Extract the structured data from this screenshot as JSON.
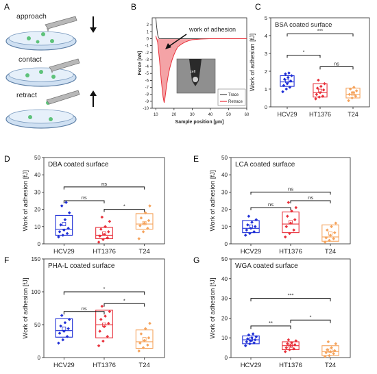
{
  "figure": {
    "colors": {
      "HCV29": "#1f2fd6",
      "HT1376": "#e8303a",
      "T24": "#f5a35c",
      "axis": "#222222",
      "retrace": "#e8303a",
      "retrace_fill": "#f4a3a6",
      "trace": "#444444"
    },
    "panel_letters": [
      "A",
      "B",
      "C",
      "D",
      "E",
      "F",
      "G"
    ],
    "schematic": {
      "steps": [
        "approach",
        "contact",
        "retract"
      ],
      "arrow_icons": [
        "arrow-down-icon",
        "arrow-up-icon"
      ]
    }
  },
  "chart_data": [
    {
      "panel": "B",
      "type": "line",
      "xlabel": "Sample position [µm]",
      "ylabel": "Force [nN]",
      "xlim": [
        8,
        60
      ],
      "ylim": [
        -10,
        3
      ],
      "xticks": [
        10,
        20,
        30,
        40,
        50,
        60
      ],
      "yticks": [
        2,
        1,
        0,
        -1,
        -2,
        -3,
        -4,
        -5,
        -6,
        -7,
        -8,
        -9,
        -10
      ],
      "annotation": "work of adhesion",
      "inset_label": "cell",
      "legend": {
        "position": "bottom-right",
        "entries": [
          "Trace",
          "Retrace"
        ]
      },
      "series": [
        {
          "name": "Trace",
          "x": [
            10.0,
            10.5,
            11.0,
            11.5,
            12.0,
            14.0,
            20.0,
            30.0,
            40.0,
            50.0,
            60.0
          ],
          "y": [
            3.0,
            1.6,
            0.6,
            0.15,
            0.02,
            0.0,
            0.0,
            0.0,
            0.0,
            0.0,
            0.0
          ]
        },
        {
          "name": "Retrace",
          "x": [
            10.0,
            11.0,
            12.0,
            13.0,
            14.0,
            14.6,
            15.0,
            16.0,
            17.0,
            18.0,
            19.0,
            20.0,
            21.0,
            22.0,
            24.0,
            26.0,
            28.0,
            30.0,
            35.0,
            40.0,
            60.0
          ],
          "y": [
            0.4,
            -0.5,
            -3.0,
            -6.0,
            -8.4,
            -9.2,
            -8.6,
            -6.6,
            -5.0,
            -3.9,
            -3.0,
            -2.3,
            -1.7,
            -1.2,
            -0.8,
            -0.5,
            -0.3,
            -0.15,
            -0.05,
            0.0,
            0.0
          ]
        }
      ]
    },
    {
      "panel": "C",
      "type": "box",
      "title": "BSA coated surface",
      "ylabel": "Work of adhesion [fJ]",
      "ylim": [
        0,
        5
      ],
      "yticks": [
        0,
        1,
        2,
        3,
        4,
        5
      ],
      "categories": [
        "HCV29",
        "HT1376",
        "T24"
      ],
      "boxes": [
        {
          "q1": 1.15,
          "median": 1.4,
          "q3": 1.75,
          "mean": 1.45,
          "points": [
            0.85,
            1.0,
            1.1,
            1.2,
            1.3,
            1.45,
            1.55,
            1.65,
            1.75,
            1.85,
            1.9
          ]
        },
        {
          "q1": 0.55,
          "median": 0.8,
          "q3": 1.3,
          "mean": 0.9,
          "points": [
            0.45,
            0.55,
            0.6,
            0.7,
            0.8,
            0.95,
            1.05,
            1.15,
            1.3,
            1.5
          ]
        },
        {
          "q1": 0.5,
          "median": 0.7,
          "q3": 1.05,
          "mean": 0.75,
          "points": [
            0.35,
            0.5,
            0.6,
            0.7,
            0.8,
            0.9,
            1.0,
            1.1
          ]
        }
      ],
      "significance": [
        {
          "from": 0,
          "to": 2,
          "label": "***",
          "level": 4.1
        },
        {
          "from": 0,
          "to": 1,
          "label": "*",
          "level": 2.9
        },
        {
          "from": 1,
          "to": 2,
          "label": "ns",
          "level": 2.25
        }
      ]
    },
    {
      "panel": "D",
      "type": "box",
      "title": "DBA coated surface",
      "ylabel": "Work of adhesion [fJ]",
      "ylim": [
        0,
        50
      ],
      "yticks": [
        0,
        10,
        20,
        30,
        40,
        50
      ],
      "categories": [
        "HCV29",
        "HT1376",
        "T24"
      ],
      "boxes": [
        {
          "q1": 5,
          "median": 8.5,
          "q3": 16.5,
          "mean": 11.5,
          "points": [
            4,
            5,
            6,
            7,
            8,
            9,
            11,
            14,
            18,
            22,
            24
          ]
        },
        {
          "q1": 3,
          "median": 5,
          "q3": 9.5,
          "mean": 6,
          "points": [
            1,
            2.5,
            3.5,
            4.5,
            5.5,
            7,
            8.5,
            10,
            13,
            15.5
          ]
        },
        {
          "q1": 8.5,
          "median": 11.5,
          "q3": 17.5,
          "mean": 12,
          "points": [
            3,
            7,
            9,
            10.5,
            12,
            13.5,
            15,
            18,
            22
          ]
        }
      ],
      "significance": [
        {
          "from": 0,
          "to": 2,
          "label": "ns",
          "level": 33
        },
        {
          "from": 0,
          "to": 1,
          "label": "ns",
          "level": 25
        },
        {
          "from": 1,
          "to": 2,
          "label": "*",
          "level": 20
        }
      ]
    },
    {
      "panel": "E",
      "type": "box",
      "title": "LCA coated surface",
      "ylabel": "Work of adhesion [fJ]",
      "ylim": [
        0,
        50
      ],
      "yticks": [
        0,
        10,
        20,
        30,
        40,
        50
      ],
      "categories": [
        "HCV29",
        "HT1376",
        "T24"
      ],
      "boxes": [
        {
          "q1": 6.5,
          "median": 9,
          "q3": 13.5,
          "mean": 10,
          "points": [
            5,
            6,
            7,
            8,
            9,
            10,
            11,
            12.5,
            14,
            16
          ]
        },
        {
          "q1": 6.5,
          "median": 11.5,
          "q3": 18.5,
          "mean": 12.5,
          "points": [
            4,
            6,
            8,
            10,
            12,
            14,
            16,
            19,
            21,
            24
          ]
        },
        {
          "q1": 1.5,
          "median": 4,
          "q3": 11,
          "mean": 6,
          "points": [
            1,
            2,
            3,
            3.5,
            5,
            6.5,
            8,
            10,
            12
          ]
        }
      ],
      "significance": [
        {
          "from": 0,
          "to": 2,
          "label": "ns",
          "level": 30
        },
        {
          "from": 0,
          "to": 1,
          "label": "ns",
          "level": 21
        },
        {
          "from": 1,
          "to": 2,
          "label": "ns",
          "level": 25
        }
      ]
    },
    {
      "panel": "F",
      "type": "box",
      "title": "PHA-L coated surface",
      "ylabel": "Work of adhesion [fJ]",
      "ylim": [
        0,
        150
      ],
      "yticks": [
        0,
        50,
        100,
        150
      ],
      "categories": [
        "HCV29",
        "HT1376",
        "T24"
      ],
      "boxes": [
        {
          "q1": 31,
          "median": 41,
          "q3": 59,
          "mean": 44,
          "points": [
            22,
            27,
            32,
            37,
            40,
            44,
            48,
            53,
            58,
            64
          ]
        },
        {
          "q1": 30,
          "median": 50,
          "q3": 72,
          "mean": 50,
          "points": [
            18,
            25,
            32,
            40,
            47,
            52,
            58,
            63,
            70,
            78
          ]
        },
        {
          "q1": 14,
          "median": 24,
          "q3": 42,
          "mean": 28,
          "points": [
            10,
            15,
            19,
            22,
            26,
            30,
            36,
            44,
            52
          ]
        }
      ],
      "significance": [
        {
          "from": 0,
          "to": 2,
          "label": "*",
          "level": 100
        },
        {
          "from": 0,
          "to": 1,
          "label": "ns",
          "level": 70
        },
        {
          "from": 1,
          "to": 2,
          "label": "*",
          "level": 82
        }
      ]
    },
    {
      "panel": "G",
      "type": "box",
      "title": "WGA coated surface",
      "ylabel": "Work of adhesion [fJ]",
      "ylim": [
        0,
        50
      ],
      "yticks": [
        0,
        10,
        20,
        30,
        40,
        50
      ],
      "categories": [
        "HCV29",
        "HT1376",
        "T24"
      ],
      "boxes": [
        {
          "q1": 7,
          "median": 9,
          "q3": 11,
          "mean": 9.2,
          "points": [
            6,
            7,
            7.5,
            8,
            8.5,
            9,
            9.5,
            10,
            10.5,
            11.5,
            12
          ]
        },
        {
          "q1": 4,
          "median": 6,
          "q3": 8,
          "mean": 6,
          "points": [
            3,
            4,
            4.5,
            5,
            6,
            6.5,
            7,
            7.5,
            8.5,
            9
          ]
        },
        {
          "q1": 1,
          "median": 3,
          "q3": 6,
          "mean": 3.5,
          "points": [
            0.5,
            1,
            2,
            2.5,
            3,
            3.5,
            4,
            5,
            7,
            8
          ]
        }
      ],
      "significance": [
        {
          "from": 0,
          "to": 2,
          "label": "***",
          "level": 30
        },
        {
          "from": 0,
          "to": 1,
          "label": "**",
          "level": 16
        },
        {
          "from": 1,
          "to": 2,
          "label": "*",
          "level": 19
        }
      ]
    }
  ]
}
